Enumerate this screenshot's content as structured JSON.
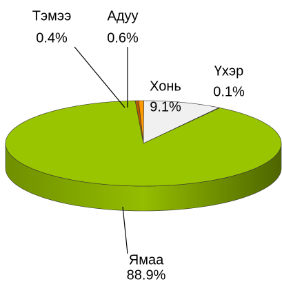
{
  "chart_data": {
    "type": "pie",
    "categories": [
      "Тэмээ",
      "Адуу",
      "Хонь",
      "Үхэр",
      "Ямаа"
    ],
    "values": [
      0.4,
      0.6,
      9.1,
      0.1,
      88.9
    ],
    "value_labels": [
      "0.4%",
      "0.6%",
      "9.1%",
      "0.1%",
      "88.9%"
    ],
    "colors": [
      "#b35900",
      "#ff9900",
      "#f0f0f0",
      "#ff00ff",
      "#99c400"
    ]
  }
}
